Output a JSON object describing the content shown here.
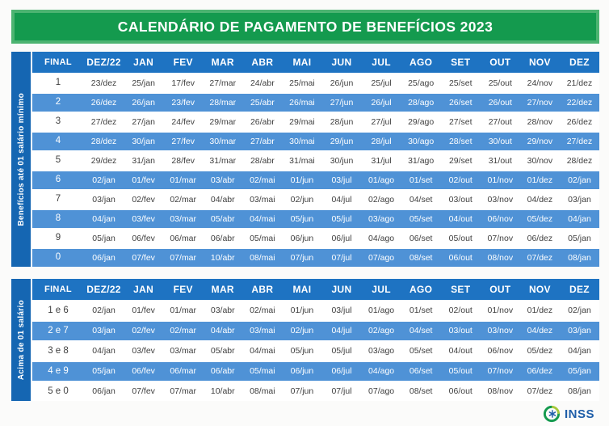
{
  "title": "CALENDÁRIO DE PAGAMENTO DE BENEFÍCIOS 2023",
  "colors": {
    "band_green_border": "#4cb471",
    "band_green_fill": "#149a4e",
    "header_blue": "#1e73c2",
    "stripe_blue": "#4f92d6",
    "side_band_blue": "#1566b2",
    "inss_blue": "#1e5ea9"
  },
  "tables": [
    {
      "side_label": "Benefícios até 01 salário mínimo",
      "columns": [
        "FINAL",
        "DEZ/22",
        "JAN",
        "FEV",
        "MAR",
        "ABR",
        "MAI",
        "JUN",
        "JUL",
        "AGO",
        "SET",
        "OUT",
        "NOV",
        "DEZ"
      ],
      "rows": [
        {
          "final": "1",
          "dates": [
            "23/dez",
            "25/jan",
            "17/fev",
            "27/mar",
            "24/abr",
            "25/mai",
            "26/jun",
            "25/jul",
            "25/ago",
            "25/set",
            "25/out",
            "24/nov",
            "21/dez"
          ]
        },
        {
          "final": "2",
          "dates": [
            "26/dez",
            "26/jan",
            "23/fev",
            "28/mar",
            "25/abr",
            "26/mai",
            "27/jun",
            "26/jul",
            "28/ago",
            "26/set",
            "26/out",
            "27/nov",
            "22/dez"
          ]
        },
        {
          "final": "3",
          "dates": [
            "27/dez",
            "27/jan",
            "24/fev",
            "29/mar",
            "26/abr",
            "29/mai",
            "28/jun",
            "27/jul",
            "29/ago",
            "27/set",
            "27/out",
            "28/nov",
            "26/dez"
          ]
        },
        {
          "final": "4",
          "dates": [
            "28/dez",
            "30/jan",
            "27/fev",
            "30/mar",
            "27/abr",
            "30/mai",
            "29/jun",
            "28/jul",
            "30/ago",
            "28/set",
            "30/out",
            "29/nov",
            "27/dez"
          ]
        },
        {
          "final": "5",
          "dates": [
            "29/dez",
            "31/jan",
            "28/fev",
            "31/mar",
            "28/abr",
            "31/mai",
            "30/jun",
            "31/jul",
            "31/ago",
            "29/set",
            "31/out",
            "30/nov",
            "28/dez"
          ]
        },
        {
          "final": "6",
          "dates": [
            "02/jan",
            "01/fev",
            "01/mar",
            "03/abr",
            "02/mai",
            "01/jun",
            "03/jul",
            "01/ago",
            "01/set",
            "02/out",
            "01/nov",
            "01/dez",
            "02/jan"
          ]
        },
        {
          "final": "7",
          "dates": [
            "03/jan",
            "02/fev",
            "02/mar",
            "04/abr",
            "03/mai",
            "02/jun",
            "04/jul",
            "02/ago",
            "04/set",
            "03/out",
            "03/nov",
            "04/dez",
            "03/jan"
          ]
        },
        {
          "final": "8",
          "dates": [
            "04/jan",
            "03/fev",
            "03/mar",
            "05/abr",
            "04/mai",
            "05/jun",
            "05/jul",
            "03/ago",
            "05/set",
            "04/out",
            "06/nov",
            "05/dez",
            "04/jan"
          ]
        },
        {
          "final": "9",
          "dates": [
            "05/jan",
            "06/fev",
            "06/mar",
            "06/abr",
            "05/mai",
            "06/jun",
            "06/jul",
            "04/ago",
            "06/set",
            "05/out",
            "07/nov",
            "06/dez",
            "05/jan"
          ]
        },
        {
          "final": "0",
          "dates": [
            "06/jan",
            "07/fev",
            "07/mar",
            "10/abr",
            "08/mai",
            "07/jun",
            "07/jul",
            "07/ago",
            "08/set",
            "06/out",
            "08/nov",
            "07/dez",
            "08/jan"
          ]
        }
      ]
    },
    {
      "side_label": "Acima de 01 salário",
      "columns": [
        "FINAL",
        "DEZ/22",
        "JAN",
        "FEV",
        "MAR",
        "ABR",
        "MAI",
        "JUN",
        "JUL",
        "AGO",
        "SET",
        "OUT",
        "NOV",
        "DEZ"
      ],
      "rows": [
        {
          "final": "1 e 6",
          "dates": [
            "02/jan",
            "01/fev",
            "01/mar",
            "03/abr",
            "02/mai",
            "01/jun",
            "03/jul",
            "01/ago",
            "01/set",
            "02/out",
            "01/nov",
            "01/dez",
            "02/jan"
          ]
        },
        {
          "final": "2 e 7",
          "dates": [
            "03/jan",
            "02/fev",
            "02/mar",
            "04/abr",
            "03/mai",
            "02/jun",
            "04/jul",
            "02/ago",
            "04/set",
            "03/out",
            "03/nov",
            "04/dez",
            "03/jan"
          ]
        },
        {
          "final": "3 e 8",
          "dates": [
            "04/jan",
            "03/fev",
            "03/mar",
            "05/abr",
            "04/mai",
            "05/jun",
            "05/jul",
            "03/ago",
            "05/set",
            "04/out",
            "06/nov",
            "05/dez",
            "04/jan"
          ]
        },
        {
          "final": "4 e 9",
          "dates": [
            "05/jan",
            "06/fev",
            "06/mar",
            "06/abr",
            "05/mai",
            "06/jun",
            "06/jul",
            "04/ago",
            "06/set",
            "05/out",
            "07/nov",
            "06/dez",
            "05/jan"
          ]
        },
        {
          "final": "5 e 0",
          "dates": [
            "06/jan",
            "07/fev",
            "07/mar",
            "10/abr",
            "08/mai",
            "07/jun",
            "07/jul",
            "07/ago",
            "08/set",
            "06/out",
            "08/nov",
            "07/dez",
            "08/jan"
          ]
        }
      ]
    }
  ],
  "footer": {
    "logo_text": "INSS"
  }
}
